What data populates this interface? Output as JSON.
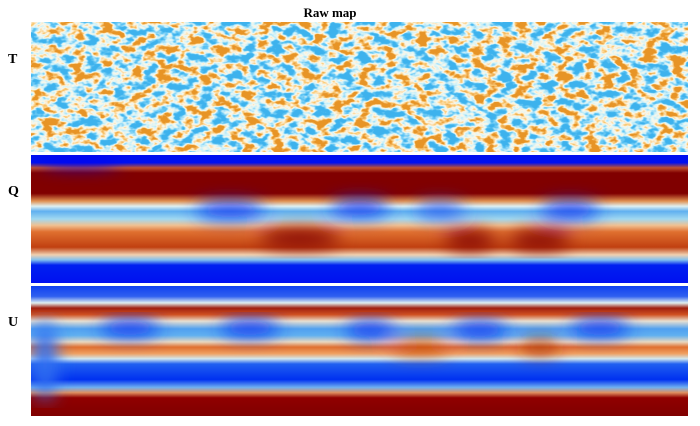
{
  "title": "Raw map",
  "panels": [
    {
      "label": "T"
    },
    {
      "label": "Q"
    },
    {
      "label": "U"
    }
  ]
}
